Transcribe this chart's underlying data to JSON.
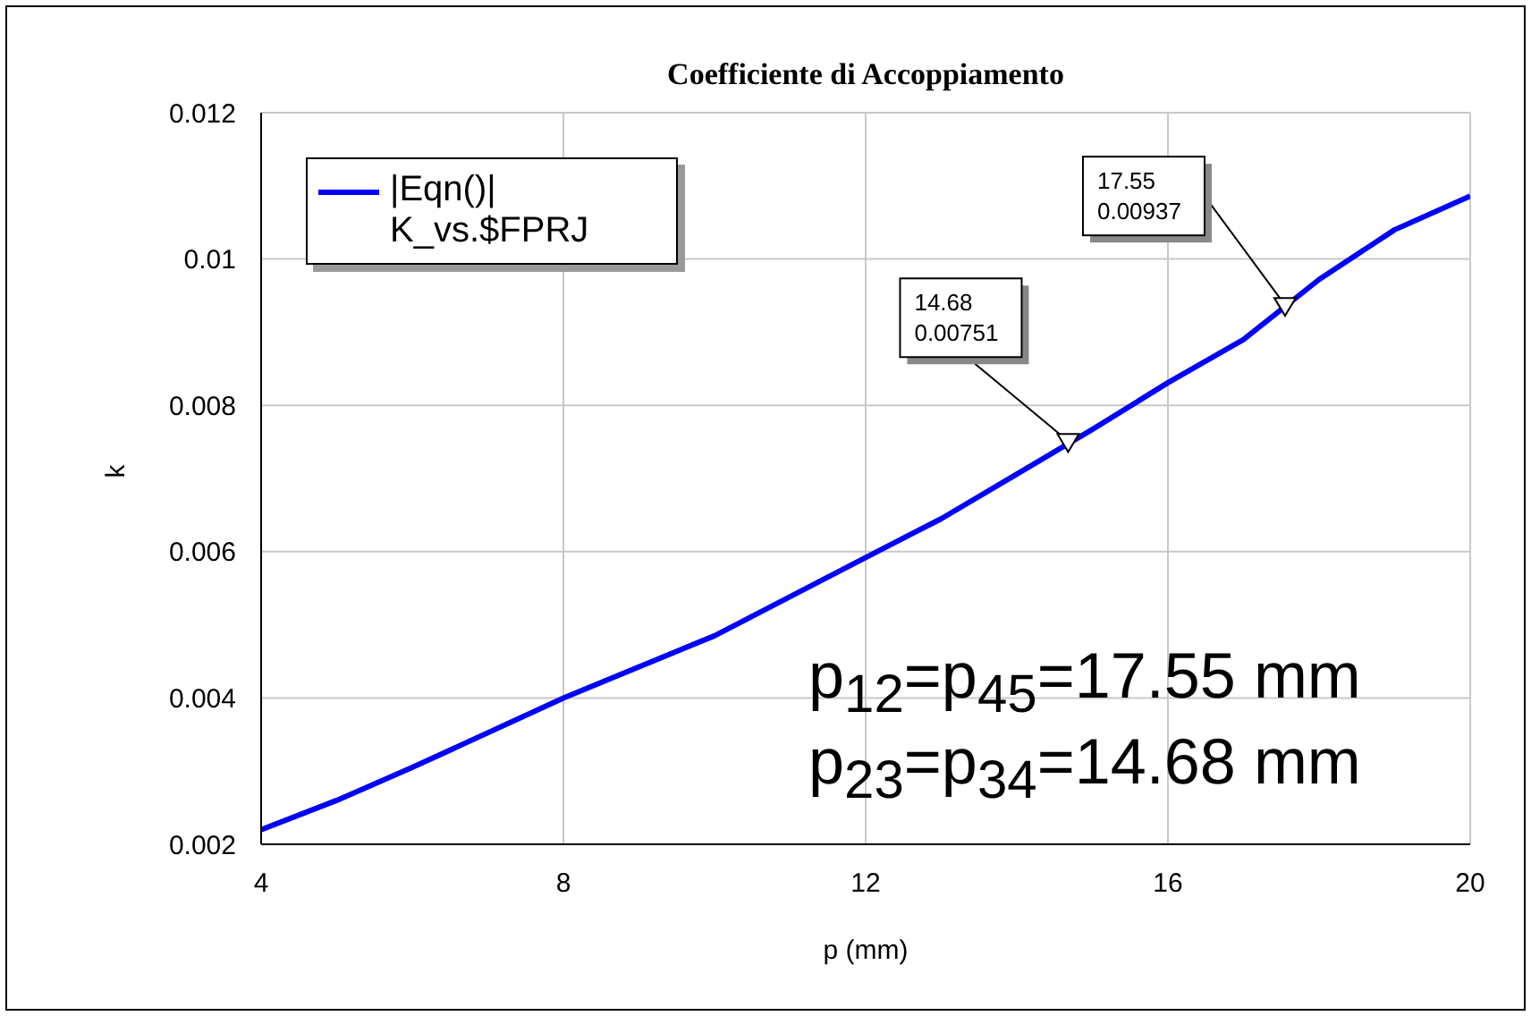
{
  "chart_data": {
    "type": "line",
    "title": "Coefficiente di Accoppiamento",
    "xlabel": "p (mm)",
    "ylabel": "k",
    "x": [
      4,
      5,
      6,
      8,
      10,
      12,
      13,
      14,
      15,
      16,
      17,
      18,
      19,
      20
    ],
    "series": [
      {
        "name": "|Eqn()| K_vs.$FPRJ",
        "color": "#0000ff",
        "values": [
          0.0022,
          0.0026,
          0.00305,
          0.004,
          0.00485,
          0.00592,
          0.00645,
          0.00706,
          0.00767,
          0.00831,
          0.0089,
          0.00972,
          0.0104,
          0.01086
        ]
      }
    ],
    "xlim": [
      4,
      20
    ],
    "xticks": [
      4,
      8,
      12,
      16,
      20
    ],
    "ylim": [
      0.002,
      0.012
    ],
    "yticks": [
      0.002,
      0.004,
      0.006,
      0.008,
      0.01,
      0.012
    ],
    "grid": true,
    "legend": "top left",
    "marker": "none",
    "line_style": "solid",
    "annotations": [
      {
        "text": "14.68\n0.00751",
        "x": 14.68,
        "y": 0.00751
      },
      {
        "text": "17.55\n0.00937",
        "x": 17.55,
        "y": 0.00937
      },
      "p$_{12}$=p$_{45}$=17.55 mm",
      "p$_{23}$=p$_{34}$=14.68 mm"
    ]
  }
}
